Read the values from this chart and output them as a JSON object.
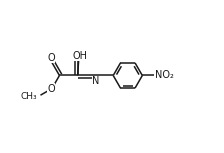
{
  "bg_color": "#ffffff",
  "line_color": "#1a1a1a",
  "line_width": 1.1,
  "font_size": 7.0,
  "fig_width": 2.24,
  "fig_height": 1.53,
  "dpi": 100,
  "xlim": [
    0,
    11
  ],
  "ylim": [
    0,
    7.5
  ]
}
